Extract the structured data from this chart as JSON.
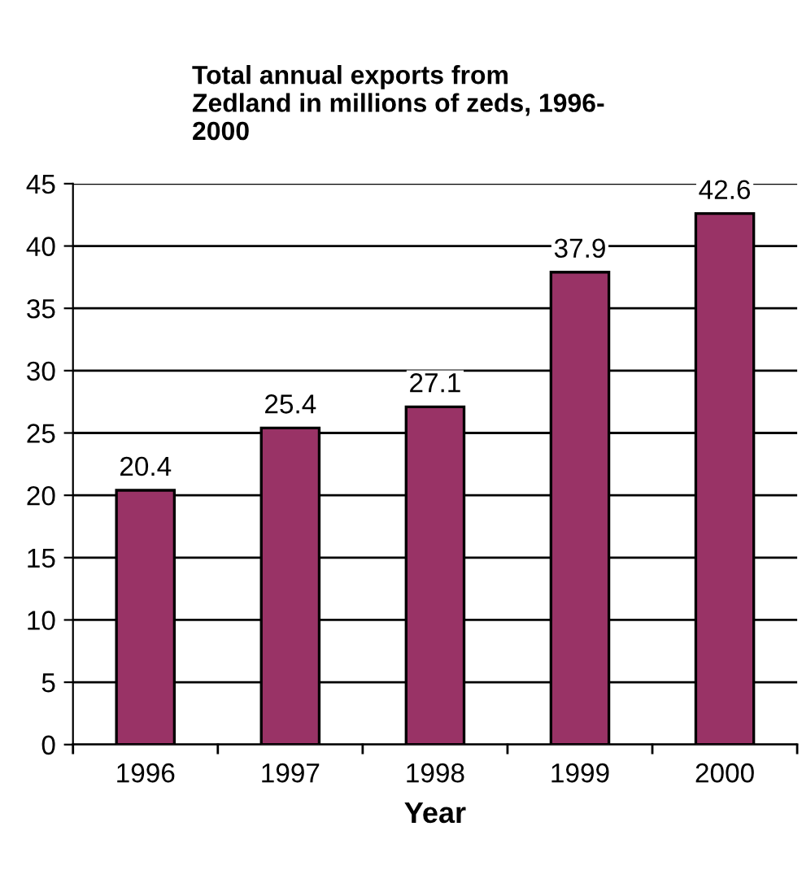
{
  "chart_data": {
    "type": "bar",
    "title": "Total annual exports from\nZedland in millions of zeds, 1996-\n2000",
    "xlabel": "Year",
    "categories": [
      "1996",
      "1997",
      "1998",
      "1999",
      "2000"
    ],
    "values": [
      20.4,
      25.4,
      27.1,
      37.9,
      42.6
    ],
    "color": "#993366",
    "ylim": [
      0,
      45
    ],
    "yticks": [
      0,
      5,
      10,
      15,
      20,
      25,
      30,
      35,
      40,
      45
    ],
    "grid": "y",
    "data_labels": true,
    "legend": false
  }
}
